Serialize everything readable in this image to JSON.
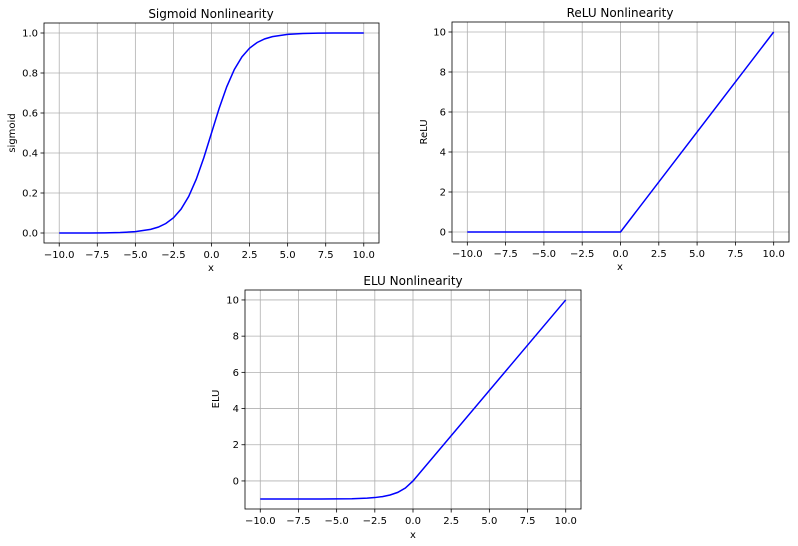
{
  "chart_data": [
    {
      "type": "line",
      "title": "Sigmoid Nonlinearity",
      "xlabel": "x",
      "ylabel": "sigmoid",
      "xlim": [
        -11,
        11
      ],
      "ylim": [
        -0.05,
        1.05
      ],
      "xticks": [
        -10.0,
        -7.5,
        -5.0,
        -2.5,
        0.0,
        2.5,
        5.0,
        7.5,
        10.0
      ],
      "yticks": [
        0.0,
        0.2,
        0.4,
        0.6,
        0.8,
        1.0
      ],
      "xtick_labels": [
        "−10.0",
        "−7.5",
        "−5.0",
        "−2.5",
        "0.0",
        "2.5",
        "5.0",
        "7.5",
        "10.0"
      ],
      "ytick_labels": [
        "0.0",
        "0.2",
        "0.4",
        "0.6",
        "0.8",
        "1.0"
      ],
      "grid": true,
      "series": [
        {
          "color": "#0000ff",
          "x": [
            -10,
            -9,
            -8,
            -7,
            -6,
            -5,
            -4,
            -3.5,
            -3,
            -2.5,
            -2,
            -1.5,
            -1,
            -0.5,
            0,
            0.5,
            1,
            1.5,
            2,
            2.5,
            3,
            3.5,
            4,
            5,
            6,
            7,
            8,
            9,
            10
          ],
          "y": [
            0.0,
            0.0001,
            0.0003,
            0.0009,
            0.0025,
            0.0067,
            0.018,
            0.0293,
            0.0474,
            0.0759,
            0.1192,
            0.1824,
            0.2689,
            0.3775,
            0.5,
            0.6225,
            0.7311,
            0.8176,
            0.8808,
            0.9241,
            0.9526,
            0.9707,
            0.982,
            0.9933,
            0.9975,
            0.9991,
            0.9997,
            0.9999,
            1.0
          ]
        }
      ]
    },
    {
      "type": "line",
      "title": "ReLU Nonlinearity",
      "xlabel": "x",
      "ylabel": "ReLU",
      "xlim": [
        -11,
        11
      ],
      "ylim": [
        -0.5,
        10.5
      ],
      "xticks": [
        -10.0,
        -7.5,
        -5.0,
        -2.5,
        0.0,
        2.5,
        5.0,
        7.5,
        10.0
      ],
      "yticks": [
        0,
        2,
        4,
        6,
        8,
        10
      ],
      "xtick_labels": [
        "−10.0",
        "−7.5",
        "−5.0",
        "−2.5",
        "0.0",
        "2.5",
        "5.0",
        "7.5",
        "10.0"
      ],
      "ytick_labels": [
        "0",
        "2",
        "4",
        "6",
        "8",
        "10"
      ],
      "grid": true,
      "series": [
        {
          "color": "#0000ff",
          "x": [
            -10,
            0,
            10
          ],
          "y": [
            0,
            0,
            10
          ]
        }
      ]
    },
    {
      "type": "line",
      "title": "ELU Nonlinearity",
      "xlabel": "x",
      "ylabel": "ELU",
      "xlim": [
        -11,
        11
      ],
      "ylim": [
        -1.55,
        10.55
      ],
      "xticks": [
        -10.0,
        -7.5,
        -5.0,
        -2.5,
        0.0,
        2.5,
        5.0,
        7.5,
        10.0
      ],
      "yticks": [
        0,
        2,
        4,
        6,
        8,
        10
      ],
      "xtick_labels": [
        "−10.0",
        "−7.5",
        "−5.0",
        "−2.5",
        "0.0",
        "2.5",
        "5.0",
        "7.5",
        "10.0"
      ],
      "ytick_labels": [
        "0",
        "2",
        "4",
        "6",
        "8",
        "10"
      ],
      "grid": true,
      "series": [
        {
          "color": "#0000ff",
          "x": [
            -10,
            -8,
            -6,
            -5,
            -4,
            -3,
            -2.5,
            -2,
            -1.5,
            -1,
            -0.5,
            0,
            10
          ],
          "y": [
            -1.0,
            -0.9997,
            -0.9975,
            -0.9933,
            -0.9817,
            -0.9502,
            -0.9179,
            -0.8647,
            -0.7769,
            -0.6321,
            -0.3935,
            0,
            10
          ]
        }
      ]
    }
  ]
}
